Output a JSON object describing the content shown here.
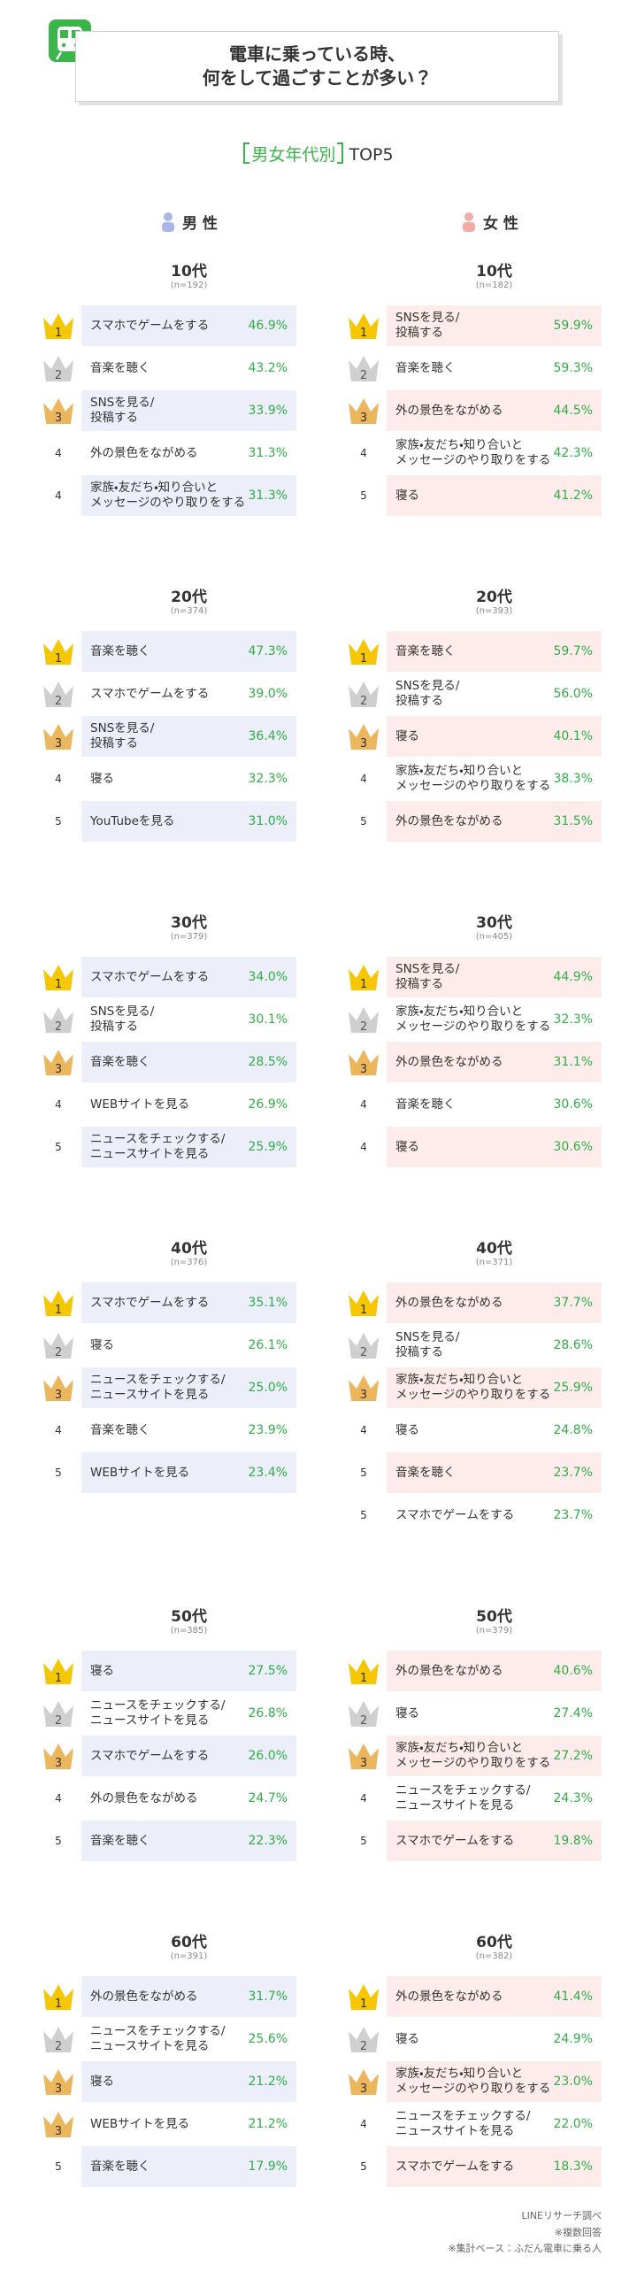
{
  "header": {
    "title": "電車に乗っている時、\n何をして過ごすことが多い？"
  },
  "subtitle": {
    "bracket": "男女年代別",
    "text": "TOP5"
  },
  "genders": [
    "男 性",
    "女 性"
  ],
  "groups": [
    {
      "age": "10代",
      "male": {
        "n": "(n=192)",
        "items": [
          {
            "rank": "1",
            "label": "スマホでゲームをする",
            "value": "46.9%"
          },
          {
            "rank": "2",
            "label": "音楽を聴く",
            "value": "43.2%"
          },
          {
            "rank": "3",
            "label": "SNSを見る/\n投稿する",
            "value": "33.9%"
          },
          {
            "rank": "4",
            "label": "外の景色をながめる",
            "value": "31.3%"
          },
          {
            "rank": "4",
            "label": "家族・友だち・知り合いと\nメッセージのやり取りをする",
            "value": "31.3%"
          }
        ]
      },
      "female": {
        "n": "(n=182)",
        "items": [
          {
            "rank": "1",
            "label": "SNSを見る/\n投稿する",
            "value": "59.9%"
          },
          {
            "rank": "2",
            "label": "音楽を聴く",
            "value": "59.3%"
          },
          {
            "rank": "3",
            "label": "外の景色をながめる",
            "value": "44.5%"
          },
          {
            "rank": "4",
            "label": "家族・友だち・知り合いと\nメッセージのやり取りをする",
            "value": "42.3%"
          },
          {
            "rank": "5",
            "label": "寝る",
            "value": "41.2%"
          }
        ]
      }
    },
    {
      "age": "20代",
      "male": {
        "n": "(n=374)",
        "items": [
          {
            "rank": "1",
            "label": "音楽を聴く",
            "value": "47.3%"
          },
          {
            "rank": "2",
            "label": "スマホでゲームをする",
            "value": "39.0%"
          },
          {
            "rank": "3",
            "label": "SNSを見る/\n投稿する",
            "value": "36.4%"
          },
          {
            "rank": "4",
            "label": "寝る",
            "value": "32.3%"
          },
          {
            "rank": "5",
            "label": "YouTubeを見る",
            "value": "31.0%"
          }
        ]
      },
      "female": {
        "n": "(n=393)",
        "items": [
          {
            "rank": "1",
            "label": "音楽を聴く",
            "value": "59.7%"
          },
          {
            "rank": "2",
            "label": "SNSを見る/\n投稿する",
            "value": "56.0%"
          },
          {
            "rank": "3",
            "label": "寝る",
            "value": "40.1%"
          },
          {
            "rank": "4",
            "label": "家族・友だち・知り合いと\nメッセージのやり取りをする",
            "value": "38.3%"
          },
          {
            "rank": "5",
            "label": "外の景色をながめる",
            "value": "31.5%"
          }
        ]
      }
    },
    {
      "age": "30代",
      "male": {
        "n": "(n=379)",
        "items": [
          {
            "rank": "1",
            "label": "スマホでゲームをする",
            "value": "34.0%"
          },
          {
            "rank": "2",
            "label": "SNSを見る/\n投稿する",
            "value": "30.1%"
          },
          {
            "rank": "3",
            "label": "音楽を聴く",
            "value": "28.5%"
          },
          {
            "rank": "4",
            "label": "WEBサイトを見る",
            "value": "26.9%"
          },
          {
            "rank": "5",
            "label": "ニュースをチェックする/\nニュースサイトを見る",
            "value": "25.9%"
          }
        ]
      },
      "female": {
        "n": "(n=405)",
        "items": [
          {
            "rank": "1",
            "label": "SNSを見る/\n投稿する",
            "value": "44.9%"
          },
          {
            "rank": "2",
            "label": "家族・友だち・知り合いと\nメッセージのやり取りをする",
            "value": "32.3%"
          },
          {
            "rank": "3",
            "label": "外の景色をながめる",
            "value": "31.1%"
          },
          {
            "rank": "4",
            "label": "音楽を聴く",
            "value": "30.6%"
          },
          {
            "rank": "4",
            "label": "寝る",
            "value": "30.6%"
          }
        ]
      }
    },
    {
      "age": "40代",
      "male": {
        "n": "(n=376)",
        "items": [
          {
            "rank": "1",
            "label": "スマホでゲームをする",
            "value": "35.1%"
          },
          {
            "rank": "2",
            "label": "寝る",
            "value": "26.1%"
          },
          {
            "rank": "3",
            "label": "ニュースをチェックする/\nニュースサイトを見る",
            "value": "25.0%"
          },
          {
            "rank": "4",
            "label": "音楽を聴く",
            "value": "23.9%"
          },
          {
            "rank": "5",
            "label": "WEBサイトを見る",
            "value": "23.4%"
          }
        ]
      },
      "female": {
        "n": "(n=371)",
        "items": [
          {
            "rank": "1",
            "label": "外の景色をながめる",
            "value": "37.7%"
          },
          {
            "rank": "2",
            "label": "SNSを見る/\n投稿する",
            "value": "28.6%"
          },
          {
            "rank": "3",
            "label": "家族・友だち・知り合いと\nメッセージのやり取りをする",
            "value": "25.9%"
          },
          {
            "rank": "4",
            "label": "寝る",
            "value": "24.8%"
          },
          {
            "rank": "5",
            "label": "音楽を聴く",
            "value": "23.7%"
          },
          {
            "rank": "5",
            "label": "スマホでゲームをする",
            "value": "23.7%"
          }
        ]
      }
    },
    {
      "age": "50代",
      "male": {
        "n": "(n=385)",
        "items": [
          {
            "rank": "1",
            "label": "寝る",
            "value": "27.5%"
          },
          {
            "rank": "2",
            "label": "ニュースをチェックする/\nニュースサイトを見る",
            "value": "26.8%"
          },
          {
            "rank": "3",
            "label": "スマホでゲームをする",
            "value": "26.0%"
          },
          {
            "rank": "4",
            "label": "外の景色をながめる",
            "value": "24.7%"
          },
          {
            "rank": "5",
            "label": "音楽を聴く",
            "value": "22.3%"
          }
        ]
      },
      "female": {
        "n": "(n=379)",
        "items": [
          {
            "rank": "1",
            "label": "外の景色をながめる",
            "value": "40.6%"
          },
          {
            "rank": "2",
            "label": "寝る",
            "value": "27.4%"
          },
          {
            "rank": "3",
            "label": "家族・友だち・知り合いと\nメッセージのやり取りをする",
            "value": "27.2%"
          },
          {
            "rank": "4",
            "label": "ニュースをチェックする/\nニュースサイトを見る",
            "value": "24.3%"
          },
          {
            "rank": "5",
            "label": "スマホでゲームをする",
            "value": "19.8%"
          }
        ]
      }
    },
    {
      "age": "60代",
      "male": {
        "n": "(n=391)",
        "items": [
          {
            "rank": "1",
            "label": "外の景色をながめる",
            "value": "31.7%"
          },
          {
            "rank": "2",
            "label": "ニュースをチェックする/\nニュースサイトを見る",
            "value": "25.6%"
          },
          {
            "rank": "3",
            "label": "寝る",
            "value": "21.2%"
          },
          {
            "rank": "3",
            "label": "WEBサイトを見る",
            "value": "21.2%"
          },
          {
            "rank": "5",
            "label": "音楽を聴く",
            "value": "17.9%"
          }
        ]
      },
      "female": {
        "n": "(n=382)",
        "items": [
          {
            "rank": "1",
            "label": "外の景色をながめる",
            "value": "41.4%"
          },
          {
            "rank": "2",
            "label": "寝る",
            "value": "24.9%"
          },
          {
            "rank": "3",
            "label": "家族・友だち・知り合いと\nメッセージのやり取りをする",
            "value": "23.0%"
          },
          {
            "rank": "4",
            "label": "ニュースをチェックする/\nニュースサイトを見る",
            "value": "22.0%"
          },
          {
            "rank": "5",
            "label": "スマホでゲームをする",
            "value": "18.3%"
          }
        ]
      }
    }
  ],
  "footer": [
    "LINEリサーチ調べ",
    "※複数回答",
    "※集計ベース：ふだん電車に乗る人"
  ]
}
